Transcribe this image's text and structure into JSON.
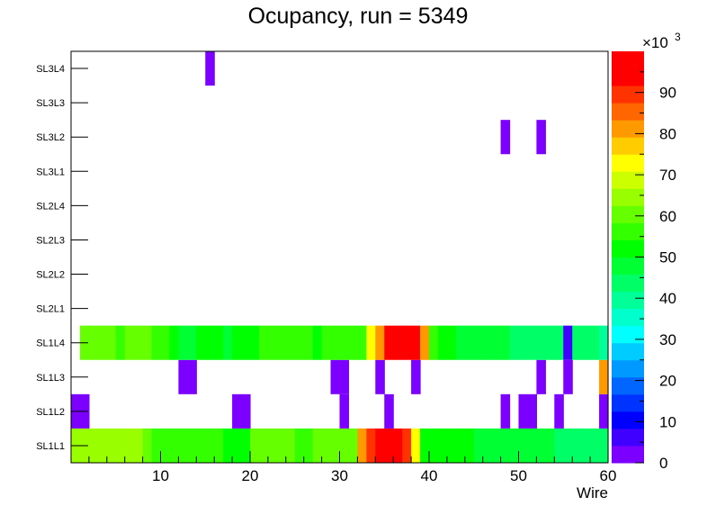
{
  "chart_data": {
    "type": "heatmap",
    "title": "Ocupancy, run = 5349",
    "xlabel": "Wire",
    "ylabel": "",
    "x_range": [
      0,
      60
    ],
    "x_ticks": [
      10,
      20,
      30,
      40,
      50,
      60
    ],
    "y_categories": [
      "SL1L1",
      "SL1L2",
      "SL1L3",
      "SL1L4",
      "SL2L1",
      "SL2L2",
      "SL2L3",
      "SL2L4",
      "SL3L1",
      "SL3L2",
      "SL3L3",
      "SL3L4"
    ],
    "z_range": [
      0,
      100000
    ],
    "z_ticks": [
      0,
      10,
      20,
      30,
      40,
      50,
      60,
      70,
      80,
      90
    ],
    "z_multiplier_label": "×10",
    "z_multiplier_exp": "3",
    "palette": [
      "#7b00ff",
      "#3f00ff",
      "#0000ff",
      "#0033ff",
      "#0066ff",
      "#0099ff",
      "#00ccff",
      "#00ffff",
      "#00ffcc",
      "#00ff99",
      "#00ff66",
      "#00ff33",
      "#00ff00",
      "#33ff00",
      "#66ff00",
      "#99ff00",
      "#ccff00",
      "#ffff00",
      "#ffcc00",
      "#ff9900",
      "#ff6600",
      "#ff3300",
      "#ff0000",
      "#ff0000"
    ],
    "rows": [
      {
        "layer": "SL1L1",
        "values": [
          65000,
          65000,
          65000,
          65000,
          65000,
          65000,
          65000,
          65000,
          62000,
          58000,
          55000,
          55000,
          55000,
          58000,
          58000,
          55000,
          58000,
          52000,
          52000,
          52000,
          60000,
          60000,
          60000,
          60000,
          60000,
          58000,
          58000,
          62000,
          62000,
          62000,
          62000,
          62000,
          80000,
          88000,
          98000,
          98000,
          98000,
          88000,
          72000,
          52000,
          52000,
          52000,
          52000,
          52000,
          52000,
          46000,
          46000,
          46000,
          46000,
          46000,
          46000,
          46000,
          46000,
          46000,
          42000,
          42000,
          42000,
          42000,
          42000,
          42000
        ]
      },
      {
        "layer": "SL1L2",
        "values": [
          3000,
          3000,
          0,
          0,
          0,
          0,
          0,
          0,
          0,
          0,
          0,
          0,
          0,
          0,
          0,
          0,
          0,
          0,
          3000,
          3000,
          0,
          0,
          0,
          0,
          0,
          0,
          0,
          0,
          0,
          0,
          3000,
          0,
          0,
          0,
          0,
          3000,
          0,
          0,
          0,
          0,
          0,
          0,
          0,
          0,
          0,
          0,
          0,
          0,
          3000,
          0,
          3000,
          3000,
          0,
          0,
          3000,
          0,
          0,
          0,
          0,
          3000
        ]
      },
      {
        "layer": "SL1L3",
        "values": [
          0,
          0,
          0,
          0,
          0,
          0,
          0,
          0,
          0,
          0,
          0,
          0,
          3000,
          3000,
          0,
          0,
          0,
          0,
          0,
          0,
          0,
          0,
          0,
          0,
          0,
          0,
          0,
          0,
          0,
          3000,
          3000,
          0,
          0,
          0,
          3000,
          0,
          0,
          0,
          3000,
          0,
          0,
          0,
          0,
          0,
          0,
          0,
          0,
          0,
          0,
          0,
          0,
          0,
          3000,
          0,
          0,
          3000,
          0,
          0,
          0,
          80000
        ]
      },
      {
        "layer": "SL1L4",
        "values": [
          0,
          62000,
          62000,
          62000,
          62000,
          58000,
          62000,
          62000,
          62000,
          55000,
          55000,
          52000,
          48000,
          48000,
          52000,
          52000,
          52000,
          48000,
          52000,
          52000,
          52000,
          55000,
          55000,
          55000,
          55000,
          55000,
          55000,
          52000,
          55000,
          55000,
          55000,
          55000,
          55000,
          72000,
          82000,
          92000,
          92000,
          92000,
          92000,
          82000,
          55000,
          52000,
          52000,
          46000,
          46000,
          46000,
          46000,
          46000,
          46000,
          42000,
          42000,
          42000,
          42000,
          42000,
          42000,
          5000,
          44000,
          44000,
          44000,
          38000
        ]
      },
      {
        "layer": "SL2L1",
        "values": []
      },
      {
        "layer": "SL2L2",
        "values": []
      },
      {
        "layer": "SL2L3",
        "values": []
      },
      {
        "layer": "SL2L4",
        "values": []
      },
      {
        "layer": "SL3L1",
        "values": []
      },
      {
        "layer": "SL3L2",
        "values": [
          0,
          0,
          0,
          0,
          0,
          0,
          0,
          0,
          0,
          0,
          0,
          0,
          0,
          0,
          0,
          0,
          0,
          0,
          0,
          0,
          0,
          0,
          0,
          0,
          0,
          0,
          0,
          0,
          0,
          0,
          0,
          0,
          0,
          0,
          0,
          0,
          0,
          0,
          0,
          0,
          0,
          0,
          0,
          0,
          0,
          0,
          0,
          0,
          3000,
          0,
          0,
          0,
          3000,
          0,
          0,
          0,
          0,
          0,
          0,
          0
        ]
      },
      {
        "layer": "SL3L3",
        "values": []
      },
      {
        "layer": "SL3L4",
        "values": [
          0,
          0,
          0,
          0,
          0,
          0,
          0,
          0,
          0,
          0,
          0,
          0,
          0,
          0,
          0,
          3000,
          0,
          0,
          0,
          0,
          0,
          0,
          0,
          0,
          0,
          0,
          0,
          0,
          0,
          0,
          0,
          0,
          0,
          0,
          0,
          0,
          0,
          0,
          0,
          0,
          0,
          0,
          0,
          0,
          0,
          0,
          0,
          0,
          0,
          0,
          0,
          0,
          0,
          0,
          0,
          0,
          0,
          0,
          0,
          0
        ]
      }
    ]
  }
}
